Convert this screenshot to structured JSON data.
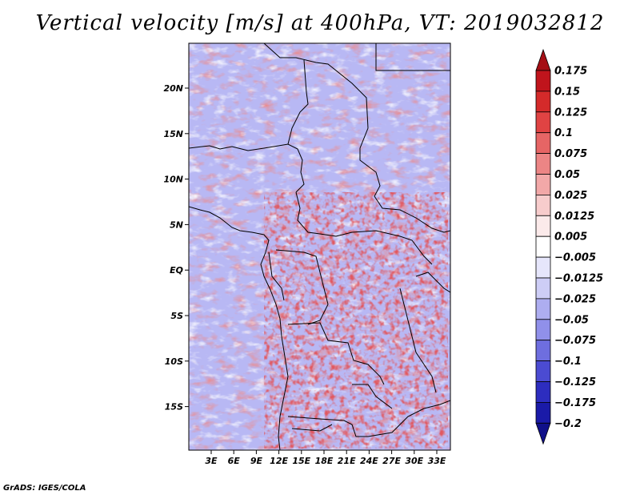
{
  "title": "Vertical velocity [m/s] at 400hPa, VT: 2019032812",
  "footer": "GrADS: IGES/COLA",
  "map": {
    "lat_labels": [
      "20N",
      "15N",
      "10N",
      "5N",
      "EQ",
      "5S",
      "10S",
      "15S"
    ],
    "lon_labels": [
      "3E",
      "6E",
      "9E",
      "12E",
      "15E",
      "18E",
      "21E",
      "24E",
      "27E",
      "30E",
      "33E"
    ],
    "lat_range": [
      -20,
      25
    ],
    "lon_range": [
      0,
      35
    ]
  },
  "colorbar": {
    "labels": [
      "0.175",
      "0.15",
      "0.125",
      "0.1",
      "0.075",
      "0.05",
      "0.025",
      "0.0125",
      "0.005",
      "−0.005",
      "−0.0125",
      "−0.025",
      "−0.05",
      "−0.075",
      "−0.1",
      "−0.125",
      "−0.175",
      "−0.2"
    ],
    "colors": [
      "#a50f15",
      "#c0141c",
      "#d42a2a",
      "#e04343",
      "#e66565",
      "#ec8585",
      "#f2a8a8",
      "#f7cccc",
      "#fbeaea",
      "#ffffff",
      "#e6e6fb",
      "#cdcdf6",
      "#adadf0",
      "#9090ea",
      "#6e6edf",
      "#4b4bd2",
      "#2d2dbf",
      "#1a1aa8",
      "#10108a"
    ]
  }
}
